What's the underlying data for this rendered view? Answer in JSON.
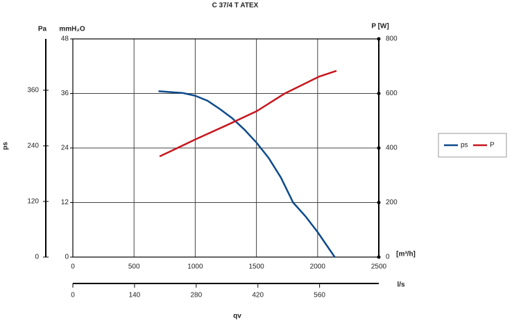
{
  "chart_data": {
    "type": "line",
    "title": "C 37/4 T ATEX",
    "xlabel": "qv",
    "ylabel": "ps",
    "xunit": "[m³/h]",
    "xlim": [
      0,
      2500
    ],
    "xticks": [
      0,
      500,
      1000,
      1500,
      2000,
      2500
    ],
    "x2unit": "l/s",
    "x2lim": [
      0,
      694.4
    ],
    "x2ticks": [
      0,
      140,
      280,
      420,
      560
    ],
    "yunit": "mmH₂O",
    "ylim": [
      0,
      48
    ],
    "yticks": [
      0,
      12,
      24,
      36,
      48
    ],
    "y3unit": "Pa",
    "y3lim": [
      0,
      470.7
    ],
    "y3ticks": [
      0,
      120,
      240,
      360
    ],
    "y2label": "P [W]",
    "y2lim": [
      0,
      800
    ],
    "y2ticks": [
      0,
      200,
      400,
      600,
      800
    ],
    "grid": true,
    "legend": "right",
    "series": [
      {
        "name": "ps",
        "color": "#0d4a8c",
        "x": [
          700,
          900,
          1000,
          1100,
          1200,
          1300,
          1400,
          1500,
          1600,
          1700,
          1800,
          1900,
          2000,
          2140
        ],
        "values": [
          36.5,
          36.1,
          35.5,
          34.4,
          32.6,
          30.6,
          28.1,
          25.2,
          21.8,
          17.5,
          12,
          9,
          5.5,
          0
        ]
      },
      {
        "name": "P",
        "color": "#c8161d",
        "axis": "y2",
        "x": [
          709,
          1009,
          1250,
          1502,
          1728,
          2013,
          2154
        ],
        "values": [
          369,
          433,
          482,
          535,
          599,
          662,
          683
        ]
      }
    ]
  }
}
